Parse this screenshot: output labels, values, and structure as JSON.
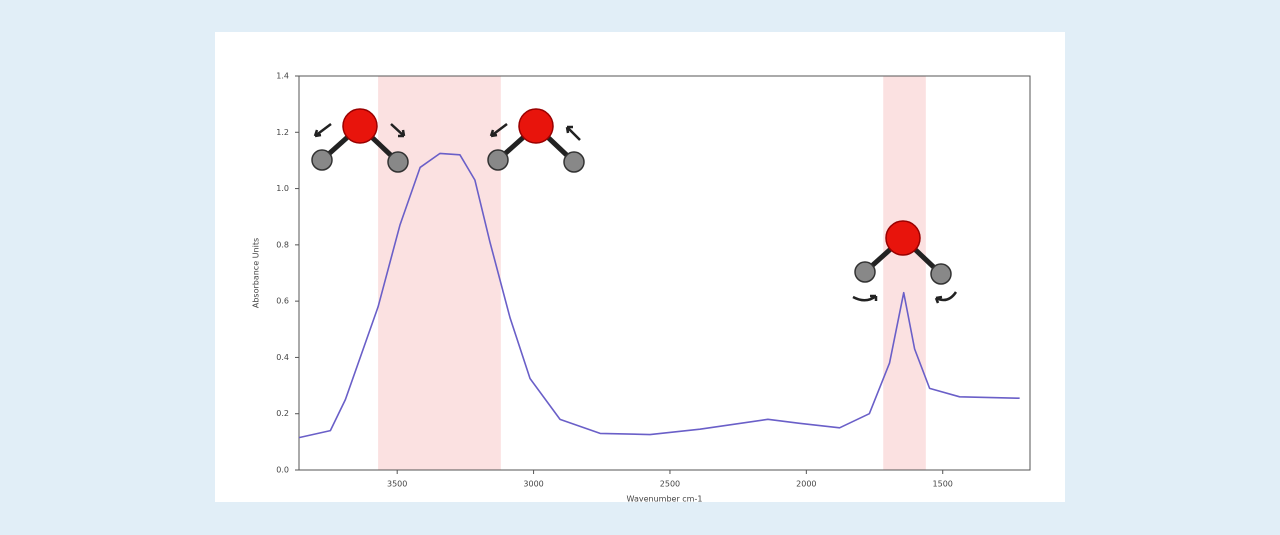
{
  "chart_data": {
    "type": "line",
    "x_label": "Wavenumber cm-1",
    "y_label": "Absorbance Units",
    "xlim": [
      3860,
      1180
    ],
    "ylim": [
      0,
      1.4
    ],
    "xticks": [
      3500,
      3000,
      2500,
      2000,
      1500
    ],
    "yticks": [
      {
        "value": 0,
        "label": "0.0"
      },
      0.2,
      0.4,
      0.6,
      0.8,
      {
        "value": 1,
        "label": "1.0"
      },
      1.2,
      1.4
    ],
    "bands": [
      {
        "from": 3570,
        "to": 3120,
        "color": "#fbe1e1"
      },
      {
        "from": 1718,
        "to": 1562,
        "color": "#fbe1e1"
      }
    ],
    "series": [
      {
        "color": "#6a5fc8",
        "x": [
          3860,
          3745,
          3690,
          3570,
          3490,
          3416,
          3343,
          3270,
          3215,
          3160,
          3086,
          3013,
          2903,
          2756,
          2573,
          2390,
          2141,
          2025,
          1878,
          1769,
          1695,
          1643,
          1603,
          1548,
          1438,
          1218
        ],
        "values": [
          0.115,
          0.14,
          0.25,
          0.58,
          0.87,
          1.075,
          1.125,
          1.12,
          1.03,
          0.81,
          0.54,
          0.325,
          0.18,
          0.13,
          0.126,
          0.145,
          0.18,
          0.166,
          0.15,
          0.2,
          0.38,
          0.63,
          0.43,
          0.29,
          0.26,
          0.255
        ]
      }
    ]
  }
}
